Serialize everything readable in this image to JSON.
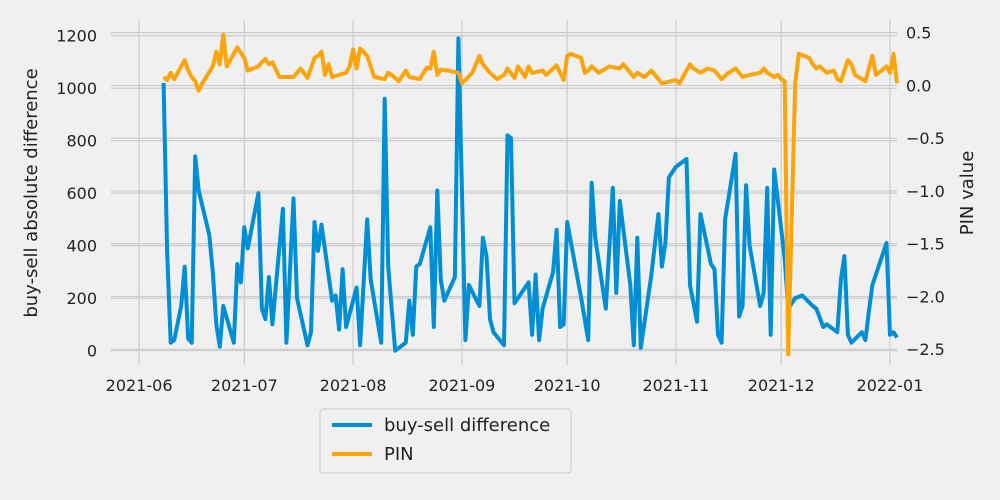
{
  "chart_data": {
    "type": "line",
    "title": "",
    "xlabel": "",
    "ylabel": "buy-sell absolute difference",
    "y2label": "PIN value",
    "grid": true,
    "legend_position": "bottom-center",
    "x_tick_labels": [
      "2021-06",
      "2021-07",
      "2021-08",
      "2021-09",
      "2021-10",
      "2021-11",
      "2021-12",
      "2022-01"
    ],
    "x_tick_dates": [
      "2021-06-01",
      "2021-07-01",
      "2021-08-01",
      "2021-09-01",
      "2021-10-01",
      "2021-11-01",
      "2021-12-01",
      "2022-01-01"
    ],
    "xlim": [
      "2021-05-24",
      "2022-01-03"
    ],
    "ylim": [
      -55,
      1260
    ],
    "y_ticks": [
      0,
      200,
      400,
      600,
      800,
      1000,
      1200
    ],
    "y2lim": [
      -2.65,
      0.62
    ],
    "y2_ticks": [
      0.5,
      0.0,
      -0.5,
      -1.0,
      -1.5,
      -2.0,
      -2.5
    ],
    "y2_tick_labels": [
      "0.5",
      "0.0",
      "−0.5",
      "−1.0",
      "−1.5",
      "−2.0",
      "−2.5"
    ],
    "series": [
      {
        "name": "buy-sell difference",
        "axis": "left",
        "color": "#008fd5",
        "points": [
          [
            "2021-06-08",
            1020
          ],
          [
            "2021-06-09",
            380
          ],
          [
            "2021-06-10",
            30
          ],
          [
            "2021-06-11",
            40
          ],
          [
            "2021-06-13",
            170
          ],
          [
            "2021-06-14",
            320
          ],
          [
            "2021-06-15",
            45
          ],
          [
            "2021-06-16",
            30
          ],
          [
            "2021-06-17",
            740
          ],
          [
            "2021-06-18",
            610
          ],
          [
            "2021-06-21",
            440
          ],
          [
            "2021-06-22",
            300
          ],
          [
            "2021-06-23",
            100
          ],
          [
            "2021-06-24",
            15
          ],
          [
            "2021-06-25",
            170
          ],
          [
            "2021-06-28",
            30
          ],
          [
            "2021-06-29",
            330
          ],
          [
            "2021-06-30",
            260
          ],
          [
            "2021-07-01",
            470
          ],
          [
            "2021-07-02",
            390
          ],
          [
            "2021-07-05",
            600
          ],
          [
            "2021-07-06",
            160
          ],
          [
            "2021-07-07",
            120
          ],
          [
            "2021-07-08",
            280
          ],
          [
            "2021-07-09",
            100
          ],
          [
            "2021-07-12",
            540
          ],
          [
            "2021-07-13",
            30
          ],
          [
            "2021-07-15",
            580
          ],
          [
            "2021-07-16",
            200
          ],
          [
            "2021-07-19",
            20
          ],
          [
            "2021-07-20",
            70
          ],
          [
            "2021-07-21",
            490
          ],
          [
            "2021-07-22",
            380
          ],
          [
            "2021-07-23",
            480
          ],
          [
            "2021-07-26",
            190
          ],
          [
            "2021-07-27",
            210
          ],
          [
            "2021-07-28",
            80
          ],
          [
            "2021-07-29",
            310
          ],
          [
            "2021-07-30",
            90
          ],
          [
            "2021-08-02",
            240
          ],
          [
            "2021-08-03",
            20
          ],
          [
            "2021-08-05",
            500
          ],
          [
            "2021-08-06",
            270
          ],
          [
            "2021-08-09",
            30
          ],
          [
            "2021-08-10",
            960
          ],
          [
            "2021-08-11",
            320
          ],
          [
            "2021-08-13",
            0
          ],
          [
            "2021-08-16",
            30
          ],
          [
            "2021-08-17",
            190
          ],
          [
            "2021-08-18",
            60
          ],
          [
            "2021-08-19",
            320
          ],
          [
            "2021-08-20",
            330
          ],
          [
            "2021-08-23",
            470
          ],
          [
            "2021-08-24",
            90
          ],
          [
            "2021-08-25",
            610
          ],
          [
            "2021-08-26",
            270
          ],
          [
            "2021-08-27",
            190
          ],
          [
            "2021-08-30",
            280
          ],
          [
            "2021-08-31",
            1190
          ],
          [
            "2021-09-02",
            40
          ],
          [
            "2021-09-03",
            250
          ],
          [
            "2021-09-06",
            170
          ],
          [
            "2021-09-07",
            430
          ],
          [
            "2021-09-08",
            360
          ],
          [
            "2021-09-09",
            120
          ],
          [
            "2021-09-10",
            70
          ],
          [
            "2021-09-13",
            20
          ],
          [
            "2021-09-14",
            820
          ],
          [
            "2021-09-15",
            810
          ],
          [
            "2021-09-16",
            180
          ],
          [
            "2021-09-20",
            260
          ],
          [
            "2021-09-21",
            60
          ],
          [
            "2021-09-22",
            290
          ],
          [
            "2021-09-23",
            40
          ],
          [
            "2021-09-24",
            160
          ],
          [
            "2021-09-27",
            300
          ],
          [
            "2021-09-28",
            460
          ],
          [
            "2021-09-29",
            90
          ],
          [
            "2021-09-30",
            100
          ],
          [
            "2021-10-01",
            490
          ],
          [
            "2021-10-05",
            200
          ],
          [
            "2021-10-07",
            40
          ],
          [
            "2021-10-08",
            640
          ],
          [
            "2021-10-09",
            430
          ],
          [
            "2021-10-12",
            160
          ],
          [
            "2021-10-14",
            620
          ],
          [
            "2021-10-15",
            220
          ],
          [
            "2021-10-16",
            570
          ],
          [
            "2021-10-19",
            250
          ],
          [
            "2021-10-20",
            20
          ],
          [
            "2021-10-21",
            430
          ],
          [
            "2021-10-22",
            10
          ],
          [
            "2021-10-25",
            290
          ],
          [
            "2021-10-27",
            520
          ],
          [
            "2021-10-28",
            320
          ],
          [
            "2021-10-29",
            410
          ],
          [
            "2021-10-30",
            660
          ],
          [
            "2021-11-01",
            700
          ],
          [
            "2021-11-04",
            730
          ],
          [
            "2021-11-05",
            250
          ],
          [
            "2021-11-07",
            110
          ],
          [
            "2021-11-08",
            520
          ],
          [
            "2021-11-11",
            330
          ],
          [
            "2021-11-12",
            310
          ],
          [
            "2021-11-13",
            60
          ],
          [
            "2021-11-14",
            30
          ],
          [
            "2021-11-15",
            500
          ],
          [
            "2021-11-18",
            750
          ],
          [
            "2021-11-19",
            130
          ],
          [
            "2021-11-20",
            170
          ],
          [
            "2021-11-21",
            630
          ],
          [
            "2021-11-22",
            400
          ],
          [
            "2021-11-25",
            170
          ],
          [
            "2021-11-26",
            220
          ],
          [
            "2021-11-27",
            620
          ],
          [
            "2021-11-28",
            60
          ],
          [
            "2021-11-29",
            690
          ],
          [
            "2021-12-02",
            350
          ],
          [
            "2021-12-03",
            160
          ],
          [
            "2021-12-05",
            200
          ],
          [
            "2021-12-07",
            210
          ],
          [
            "2021-12-10",
            170
          ],
          [
            "2021-12-11",
            160
          ],
          [
            "2021-12-13",
            90
          ],
          [
            "2021-12-14",
            100
          ],
          [
            "2021-12-17",
            70
          ],
          [
            "2021-12-18",
            270
          ],
          [
            "2021-12-19",
            360
          ],
          [
            "2021-12-20",
            60
          ],
          [
            "2021-12-21",
            30
          ],
          [
            "2021-12-24",
            70
          ],
          [
            "2021-12-25",
            40
          ],
          [
            "2021-12-26",
            150
          ],
          [
            "2021-12-27",
            250
          ],
          [
            "2021-12-31",
            410
          ],
          [
            "2022-01-01",
            60
          ],
          [
            "2022-01-02",
            70
          ],
          [
            "2022-01-03",
            50
          ]
        ]
      },
      {
        "name": "PIN",
        "axis": "right",
        "color": "#fca50a",
        "points": [
          [
            "2021-06-08",
            0.08
          ],
          [
            "2021-06-09",
            0.05
          ],
          [
            "2021-06-10",
            0.12
          ],
          [
            "2021-06-11",
            0.06
          ],
          [
            "2021-06-12",
            0.12
          ],
          [
            "2021-06-14",
            0.24
          ],
          [
            "2021-06-15",
            0.14
          ],
          [
            "2021-06-16",
            0.08
          ],
          [
            "2021-06-17",
            0.04
          ],
          [
            "2021-06-18",
            -0.05
          ],
          [
            "2021-06-19",
            0.02
          ],
          [
            "2021-06-22",
            0.18
          ],
          [
            "2021-06-23",
            0.32
          ],
          [
            "2021-06-24",
            0.2
          ],
          [
            "2021-06-25",
            0.48
          ],
          [
            "2021-06-26",
            0.18
          ],
          [
            "2021-06-29",
            0.36
          ],
          [
            "2021-07-01",
            0.26
          ],
          [
            "2021-07-02",
            0.14
          ],
          [
            "2021-07-05",
            0.18
          ],
          [
            "2021-07-06",
            0.22
          ],
          [
            "2021-07-07",
            0.25
          ],
          [
            "2021-07-08",
            0.2
          ],
          [
            "2021-07-09",
            0.22
          ],
          [
            "2021-07-11",
            0.08
          ],
          [
            "2021-07-15",
            0.08
          ],
          [
            "2021-07-16",
            0.12
          ],
          [
            "2021-07-17",
            0.16
          ],
          [
            "2021-07-19",
            0.07
          ],
          [
            "2021-07-21",
            0.26
          ],
          [
            "2021-07-22",
            0.28
          ],
          [
            "2021-07-23",
            0.32
          ],
          [
            "2021-07-24",
            0.1
          ],
          [
            "2021-07-25",
            0.2
          ],
          [
            "2021-07-26",
            0.08
          ],
          [
            "2021-07-30",
            0.12
          ],
          [
            "2021-07-31",
            0.18
          ],
          [
            "2021-08-01",
            0.34
          ],
          [
            "2021-08-02",
            0.16
          ],
          [
            "2021-08-03",
            0.35
          ],
          [
            "2021-08-05",
            0.28
          ],
          [
            "2021-08-07",
            0.08
          ],
          [
            "2021-08-10",
            0.06
          ],
          [
            "2021-08-11",
            0.12
          ],
          [
            "2021-08-12",
            0.1
          ],
          [
            "2021-08-14",
            0.04
          ],
          [
            "2021-08-16",
            0.14
          ],
          [
            "2021-08-17",
            0.08
          ],
          [
            "2021-08-20",
            0.06
          ],
          [
            "2021-08-22",
            0.17
          ],
          [
            "2021-08-23",
            0.16
          ],
          [
            "2021-08-24",
            0.32
          ],
          [
            "2021-08-25",
            0.1
          ],
          [
            "2021-08-26",
            0.15
          ],
          [
            "2021-08-28",
            0.14
          ],
          [
            "2021-08-31",
            0.12
          ],
          [
            "2021-09-01",
            0.02
          ],
          [
            "2021-09-04",
            0.12
          ],
          [
            "2021-09-06",
            0.28
          ],
          [
            "2021-09-07",
            0.2
          ],
          [
            "2021-09-09",
            0.12
          ],
          [
            "2021-09-11",
            0.06
          ],
          [
            "2021-09-13",
            0.1
          ],
          [
            "2021-09-14",
            0.16
          ],
          [
            "2021-09-16",
            0.07
          ],
          [
            "2021-09-17",
            0.18
          ],
          [
            "2021-09-19",
            0.08
          ],
          [
            "2021-09-20",
            0.18
          ],
          [
            "2021-09-21",
            0.12
          ],
          [
            "2021-09-24",
            0.14
          ],
          [
            "2021-09-25",
            0.1
          ],
          [
            "2021-09-28",
            0.19
          ],
          [
            "2021-09-29",
            0.12
          ],
          [
            "2021-09-30",
            0.05
          ],
          [
            "2021-10-01",
            0.28
          ],
          [
            "2021-10-02",
            0.3
          ],
          [
            "2021-10-05",
            0.26
          ],
          [
            "2021-10-06",
            0.12
          ],
          [
            "2021-10-07",
            0.14
          ],
          [
            "2021-10-08",
            0.18
          ],
          [
            "2021-10-10",
            0.12
          ],
          [
            "2021-10-13",
            0.18
          ],
          [
            "2021-10-16",
            0.16
          ],
          [
            "2021-10-17",
            0.2
          ],
          [
            "2021-10-20",
            0.08
          ],
          [
            "2021-10-21",
            0.12
          ],
          [
            "2021-10-23",
            0.08
          ],
          [
            "2021-10-25",
            0.14
          ],
          [
            "2021-10-28",
            0.02
          ],
          [
            "2021-11-01",
            0.05
          ],
          [
            "2021-11-02",
            0.02
          ],
          [
            "2021-11-04",
            0.14
          ],
          [
            "2021-11-05",
            0.2
          ],
          [
            "2021-11-06",
            0.16
          ],
          [
            "2021-11-08",
            0.12
          ],
          [
            "2021-11-10",
            0.16
          ],
          [
            "2021-11-12",
            0.14
          ],
          [
            "2021-11-14",
            0.06
          ],
          [
            "2021-11-16",
            0.12
          ],
          [
            "2021-11-18",
            0.16
          ],
          [
            "2021-11-20",
            0.08
          ],
          [
            "2021-11-22",
            0.1
          ],
          [
            "2021-11-25",
            0.12
          ],
          [
            "2021-11-26",
            0.16
          ],
          [
            "2021-11-27",
            0.12
          ],
          [
            "2021-11-29",
            0.08
          ],
          [
            "2021-11-30",
            0.1
          ],
          [
            "2021-12-01",
            0.06
          ],
          [
            "2021-12-02",
            0.04
          ],
          [
            "2021-12-03",
            -2.55
          ],
          [
            "2021-12-05",
            0.02
          ],
          [
            "2021-12-06",
            0.3
          ],
          [
            "2021-12-09",
            0.26
          ],
          [
            "2021-12-10",
            0.2
          ],
          [
            "2021-12-11",
            0.16
          ],
          [
            "2021-12-12",
            0.18
          ],
          [
            "2021-12-14",
            0.12
          ],
          [
            "2021-12-16",
            0.14
          ],
          [
            "2021-12-17",
            0.06
          ],
          [
            "2021-12-18",
            0.04
          ],
          [
            "2021-12-20",
            0.24
          ],
          [
            "2021-12-21",
            0.2
          ],
          [
            "2021-12-22",
            0.1
          ],
          [
            "2021-12-25",
            0.04
          ],
          [
            "2021-12-27",
            0.28
          ],
          [
            "2021-12-28",
            0.1
          ],
          [
            "2021-12-31",
            0.18
          ],
          [
            "2022-01-01",
            0.12
          ],
          [
            "2022-01-02",
            0.3
          ],
          [
            "2022-01-03",
            0.02
          ]
        ]
      }
    ]
  }
}
